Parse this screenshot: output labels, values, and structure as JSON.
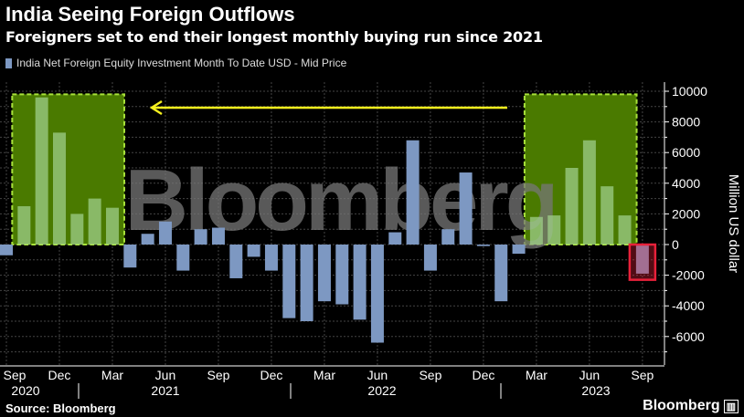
{
  "chart_data": {
    "type": "bar",
    "title": "India Seeing Foreign Outflows",
    "subtitle": "Foreigners set to end their longest monthly buying run since 2021",
    "legend": [
      "India Net Foreign Equity Investment Month To Date USD - Mid Price"
    ],
    "ylabel": "Million US dollar",
    "ylim": [
      -7800,
      10600
    ],
    "y_ticks": [
      10000,
      8000,
      6000,
      4000,
      2000,
      0,
      -2000,
      -4000,
      -6000
    ],
    "x_tick_labels": [
      "Sep",
      "Dec",
      "Mar",
      "Jun",
      "Sep",
      "Dec",
      "Mar",
      "Jun",
      "Sep",
      "Dec",
      "Mar",
      "Jun",
      "Sep"
    ],
    "x_year_labels": [
      "2020",
      "2021",
      "2022",
      "2023"
    ],
    "categories": [
      "2020-09",
      "2020-10",
      "2020-11",
      "2020-12",
      "2021-01",
      "2021-02",
      "2021-03",
      "2021-04",
      "2021-05",
      "2021-06",
      "2021-07",
      "2021-08",
      "2021-09",
      "2021-10",
      "2021-11",
      "2021-12",
      "2022-01",
      "2022-02",
      "2022-03",
      "2022-04",
      "2022-05",
      "2022-06",
      "2022-07",
      "2022-08",
      "2022-09",
      "2022-10",
      "2022-11",
      "2022-12",
      "2023-01",
      "2023-02",
      "2023-03",
      "2023-04",
      "2023-05",
      "2023-06",
      "2023-07",
      "2023-08",
      "2023-09"
    ],
    "values": [
      -700,
      2500,
      9600,
      7300,
      2000,
      3000,
      2400,
      -1500,
      700,
      1500,
      -1700,
      1000,
      1100,
      -2200,
      -800,
      -1700,
      -4800,
      -5000,
      -3700,
      -3900,
      -4900,
      -6400,
      800,
      6800,
      -1700,
      1000,
      4700,
      -100,
      -3700,
      -600,
      1800,
      1900,
      5000,
      6800,
      3800,
      1900,
      -1900
    ],
    "highlights": [
      {
        "from": "2020-10",
        "to": "2021-03",
        "color": "#4a7a00"
      },
      {
        "from": "2023-03",
        "to": "2023-08",
        "color": "#4a7a00"
      },
      {
        "from": "2023-09",
        "to": "2023-09",
        "color": "#e8213a"
      }
    ],
    "bar_color": "#7d98c2",
    "arrow_color": "#f5f01e",
    "grid": true
  },
  "watermark": "Bloomberg",
  "source": "Source: Bloomberg",
  "logo": "Bloomberg"
}
